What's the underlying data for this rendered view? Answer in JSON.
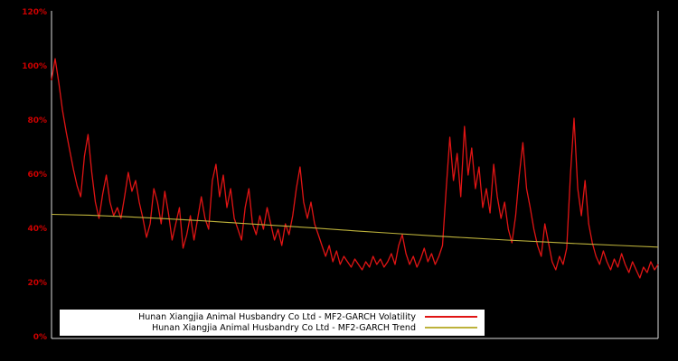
{
  "chart_data": {
    "type": "line",
    "title": "",
    "xlabel": "",
    "ylabel": "",
    "ylim": [
      0,
      120
    ],
    "ytick_values": [
      0,
      20,
      40,
      60,
      80,
      100,
      120
    ],
    "ytick_labels": [
      "0%",
      "20%",
      "40%",
      "60%",
      "80%",
      "100%",
      "120%"
    ],
    "xtick_labels": [],
    "grid": false,
    "legend_position": "bottom-center-inside",
    "colors": {
      "background": "#000000",
      "axis": "#dcdcdc",
      "tick_label": "#cc0000",
      "legend_background": "#ffffff",
      "legend_text": "#000000"
    },
    "series": [
      {
        "name": "Hunan Xiangjia Animal Husbandry Co Ltd - MF2-GARCH Volatility",
        "color": "#e01414",
        "width": 1.3,
        "unit": "%",
        "values": [
          95,
          103,
          94,
          84,
          76,
          69,
          62,
          56,
          52,
          67,
          75,
          61,
          50,
          44,
          53,
          60,
          50,
          45,
          48,
          44,
          52,
          61,
          54,
          58,
          50,
          44,
          37,
          42,
          55,
          50,
          42,
          54,
          46,
          36,
          42,
          48,
          33,
          38,
          45,
          36,
          44,
          52,
          44,
          40,
          58,
          64,
          52,
          60,
          48,
          55,
          44,
          40,
          36,
          48,
          55,
          42,
          38,
          45,
          40,
          48,
          42,
          36,
          40,
          34,
          42,
          38,
          45,
          55,
          63,
          50,
          44,
          50,
          42,
          38,
          34,
          30,
          34,
          28,
          32,
          27,
          30,
          28,
          26,
          29,
          27,
          25,
          28,
          26,
          30,
          27,
          29,
          26,
          28,
          31,
          27,
          34,
          38,
          31,
          27,
          30,
          26,
          29,
          33,
          28,
          31,
          27,
          30,
          34,
          55,
          74,
          58,
          68,
          52,
          78,
          60,
          70,
          55,
          63,
          48,
          55,
          46,
          64,
          52,
          44,
          50,
          40,
          35,
          45,
          60,
          72,
          55,
          48,
          40,
          34,
          30,
          42,
          35,
          28,
          25,
          30,
          27,
          33,
          60,
          81,
          55,
          45,
          58,
          42,
          35,
          30,
          27,
          32,
          28,
          25,
          29,
          26,
          31,
          27,
          24,
          28,
          25,
          22,
          26,
          24,
          28,
          25,
          27
        ]
      },
      {
        "name": "Hunan Xiangjia Animal Husbandry Co Ltd - MF2-GARCH Trend",
        "color": "#bdb23b",
        "width": 1.1,
        "unit": "%",
        "values": [
          45.5,
          45.2,
          44.6,
          43.9,
          43.1,
          42.2,
          41.3,
          40.4,
          39.4,
          38.5,
          37.6,
          36.8,
          36.0,
          35.3,
          34.6,
          34.0,
          33.4
        ]
      }
    ]
  },
  "legend": {
    "items": [
      {
        "label": "Hunan Xiangjia Animal Husbandry Co Ltd - MF2-GARCH Volatility"
      },
      {
        "label": "Hunan Xiangjia Animal Husbandry Co Ltd - MF2-GARCH Trend"
      }
    ]
  }
}
